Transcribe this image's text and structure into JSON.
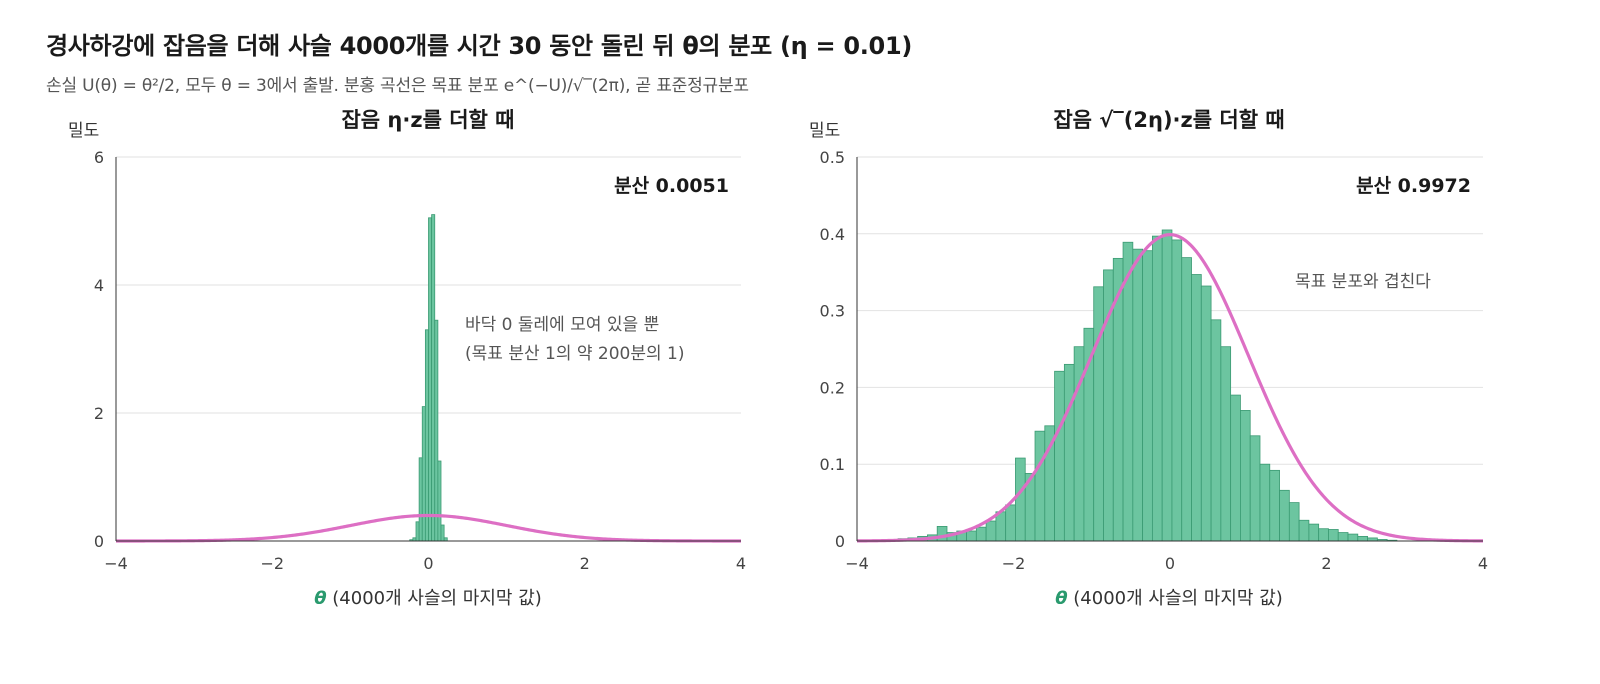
{
  "title": "경사하강에 잡음을 더해 사슬 4000개를 시간 30 동안 돌린 뒤 θ의 분포 (η = 0.01)",
  "subtitle": "손실 U(θ) = θ²/2, 모두 θ = 3에서 출발. 분홍 곡선은 목표 분포 e^(−U)/√‾(2π), 곧 표준정규분포",
  "colors": {
    "bar_fill": "#6cc5a0",
    "bar_edge": "#3a9a72",
    "curve": "#dd6fc4",
    "axis_label_theta": "#2a9a6e",
    "grid": "#e2e2e2",
    "axis": "#333333"
  },
  "chart_data": [
    {
      "type": "bar",
      "title": "잡음 η·z를 더할 때",
      "ylabel": "밀도",
      "xlabel_symbol": "θ",
      "xlabel": "(4000개 사슬의 마지막 값)",
      "xlim": [
        -4,
        4
      ],
      "ylim": [
        0,
        6
      ],
      "xticks": [
        "−4",
        "−2",
        "0",
        "2",
        "4"
      ],
      "xtick_values": [
        -4,
        -2,
        0,
        2,
        4
      ],
      "yticks": [
        "0",
        "2",
        "4",
        "6"
      ],
      "ytick_values": [
        0,
        2,
        4,
        6
      ],
      "bin_start": -0.24,
      "bin_width": 0.04,
      "values": [
        0.02,
        0.05,
        0.3,
        1.3,
        2.1,
        3.3,
        5.05,
        5.1,
        3.45,
        1.25,
        0.25,
        0.05
      ],
      "variance_label": "분산 0.0051",
      "annotation": [
        "바닥 0 둘레에 모여 있을 뿐",
        "(목표 분산 1의 약 200분의 1)"
      ],
      "curve": "standard_normal_pdf"
    },
    {
      "type": "bar",
      "title": "잡음 √‾(2η)·z를 더할 때",
      "ylabel": "밀도",
      "xlabel_symbol": "θ",
      "xlabel": "(4000개 사슬의 마지막 값)",
      "xlim": [
        -4,
        4
      ],
      "ylim": [
        0,
        0.5
      ],
      "xticks": [
        "−4",
        "−2",
        "0",
        "2",
        "4"
      ],
      "xtick_values": [
        -4,
        -2,
        0,
        2,
        4
      ],
      "yticks": [
        "0",
        "0.1",
        "0.2",
        "0.3",
        "0.4",
        "0.5"
      ],
      "ytick_values": [
        0,
        0.1,
        0.2,
        0.3,
        0.4,
        0.5
      ],
      "bin_start": -3.6,
      "bin_width": 0.125,
      "values": [
        0.002,
        0.003,
        0.004,
        0.006,
        0.008,
        0.019,
        0.011,
        0.013,
        0.013,
        0.018,
        0.026,
        0.038,
        0.047,
        0.108,
        0.088,
        0.143,
        0.15,
        0.221,
        0.23,
        0.253,
        0.277,
        0.331,
        0.353,
        0.368,
        0.389,
        0.38,
        0.378,
        0.397,
        0.405,
        0.392,
        0.369,
        0.347,
        0.332,
        0.288,
        0.253,
        0.19,
        0.17,
        0.137,
        0.1,
        0.092,
        0.066,
        0.05,
        0.027,
        0.022,
        0.016,
        0.015,
        0.011,
        0.009,
        0.006,
        0.004,
        0.002,
        0.001
      ],
      "variance_label": "분산 0.9972",
      "annotation": [
        "목표 분포와 겹친다"
      ],
      "curve": "standard_normal_pdf"
    }
  ]
}
